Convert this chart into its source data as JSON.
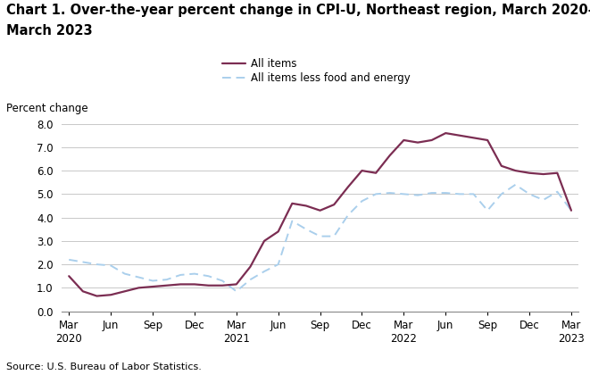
{
  "title_line1": "Chart 1. Over-the-year percent change in CPI-U, Northeast region, March 2020–",
  "title_line2": "March 2023",
  "ylabel": "Percent change",
  "source": "Source: U.S. Bureau of Labor Statistics.",
  "ylim": [
    0.0,
    8.0
  ],
  "yticks": [
    0.0,
    1.0,
    2.0,
    3.0,
    4.0,
    5.0,
    6.0,
    7.0,
    8.0
  ],
  "x_tick_labels": [
    "Mar\n2020",
    "Jun",
    "Sep",
    "Dec",
    "Mar\n2021",
    "Jun",
    "Sep",
    "Dec",
    "Mar\n2022",
    "Jun",
    "Sep",
    "Dec",
    "Mar\n2023"
  ],
  "x_tick_positions": [
    0,
    3,
    6,
    9,
    12,
    15,
    18,
    21,
    24,
    27,
    30,
    33,
    36
  ],
  "all_items_color": "#7b2d52",
  "core_items_color": "#aacfec",
  "grid_color": "#c8c8c8",
  "legend_labels": [
    "All items",
    "All items less food and energy"
  ],
  "title_fontsize": 10.5,
  "label_fontsize": 8.5,
  "tick_fontsize": 8.5,
  "source_fontsize": 8.0,
  "all_items": [
    1.5,
    0.85,
    0.65,
    0.7,
    0.85,
    1.0,
    1.05,
    1.1,
    1.15,
    1.15,
    1.1,
    1.1,
    1.15,
    1.9,
    3.0,
    3.4,
    4.6,
    4.5,
    4.3,
    4.55,
    5.3,
    6.0,
    5.9,
    6.65,
    7.3,
    7.2,
    7.3,
    7.6,
    7.5,
    7.4,
    7.3,
    6.2,
    6.0,
    5.9,
    5.85,
    5.9,
    4.3
  ],
  "core_items": [
    2.2,
    2.1,
    2.0,
    1.95,
    1.6,
    1.45,
    1.3,
    1.35,
    1.55,
    1.6,
    1.5,
    1.3,
    0.85,
    1.35,
    1.7,
    2.0,
    3.85,
    3.5,
    3.2,
    3.2,
    4.1,
    4.7,
    5.0,
    5.05,
    5.0,
    4.95,
    5.05,
    5.05,
    5.0,
    5.0,
    4.3,
    5.0,
    5.4,
    5.0,
    4.75,
    5.1,
    4.3
  ]
}
